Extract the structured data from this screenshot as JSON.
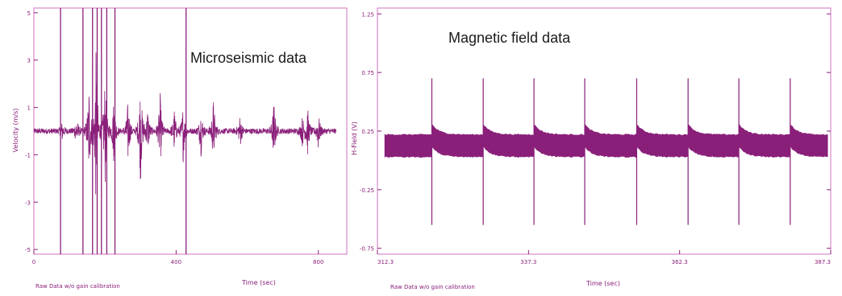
{
  "chart_data": [
    {
      "type": "line",
      "overlay_title": "Microseismic data",
      "xlabel": "Time (sec)",
      "ylabel": "Velocity (m/s)",
      "footer": "Raw Data w/o gain calibration",
      "xlim": [
        0,
        880
      ],
      "ylim": [
        -5.2,
        5.2
      ],
      "x_ticks": [
        "0",
        "400",
        "800"
      ],
      "y_ticks": [
        "5",
        "3",
        "1",
        "-1",
        "-3",
        "-5"
      ],
      "color": "#8a1f7a",
      "spike_times": [
        75,
        138,
        165,
        178,
        190,
        205,
        228,
        428
      ],
      "bursts": [
        {
          "x": 80,
          "amp": 0.35
        },
        {
          "x": 120,
          "amp": 0.6
        },
        {
          "x": 155,
          "amp": 2.2
        },
        {
          "x": 175,
          "amp": 3.6
        },
        {
          "x": 200,
          "amp": 2.4
        },
        {
          "x": 225,
          "amp": 1.5
        },
        {
          "x": 265,
          "amp": 1.4
        },
        {
          "x": 300,
          "amp": 2.3
        },
        {
          "x": 320,
          "amp": 1.0
        },
        {
          "x": 355,
          "amp": 1.6
        },
        {
          "x": 395,
          "amp": 0.9
        },
        {
          "x": 420,
          "amp": 1.2
        },
        {
          "x": 470,
          "amp": 1.0
        },
        {
          "x": 505,
          "amp": 1.4
        },
        {
          "x": 580,
          "amp": 0.7
        },
        {
          "x": 675,
          "amp": 1.3
        },
        {
          "x": 755,
          "amp": 0.6
        },
        {
          "x": 770,
          "amp": 1.0
        },
        {
          "x": 800,
          "amp": 0.8
        }
      ],
      "baseline_amp": 0.12
    },
    {
      "type": "line",
      "overlay_title": "Magnetic field data",
      "xlabel": "Time (sec)",
      "ylabel": "H-Field (V)",
      "footer": "Raw Data w/o gain calibration",
      "xlim": [
        312.3,
        387.3
      ],
      "ylim": [
        -0.8,
        1.3
      ],
      "x_ticks": [
        "312.3",
        "337.3",
        "362.3",
        "387.3"
      ],
      "x_tick_values": [
        312.3,
        337.3,
        362.3,
        387.3
      ],
      "y_ticks": [
        "1.25",
        "0.75",
        "0.25",
        "-0.25",
        "-0.75"
      ],
      "y_tick_values": [
        1.25,
        0.75,
        0.25,
        -0.25,
        -0.75
      ],
      "color": "#8a1f7a",
      "band_low": 0.03,
      "band_high": 0.22,
      "spike_times": [
        321.3,
        329.8,
        338.2,
        346.6,
        355.2,
        363.7,
        372.1,
        380.6
      ],
      "spike_peak": 0.7,
      "spike_trough": -0.55
    }
  ]
}
